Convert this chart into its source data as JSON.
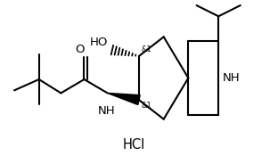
{
  "background_color": "#ffffff",
  "line_color": "#000000",
  "line_width": 1.5,
  "fig_width": 3.12,
  "fig_height": 1.75,
  "dpi": 100,
  "hcl_label": "HCl",
  "ho_label": "HO",
  "nh_label": "NH",
  "o_label": "O",
  "stereo1": "&1",
  "stereo2": "&1"
}
